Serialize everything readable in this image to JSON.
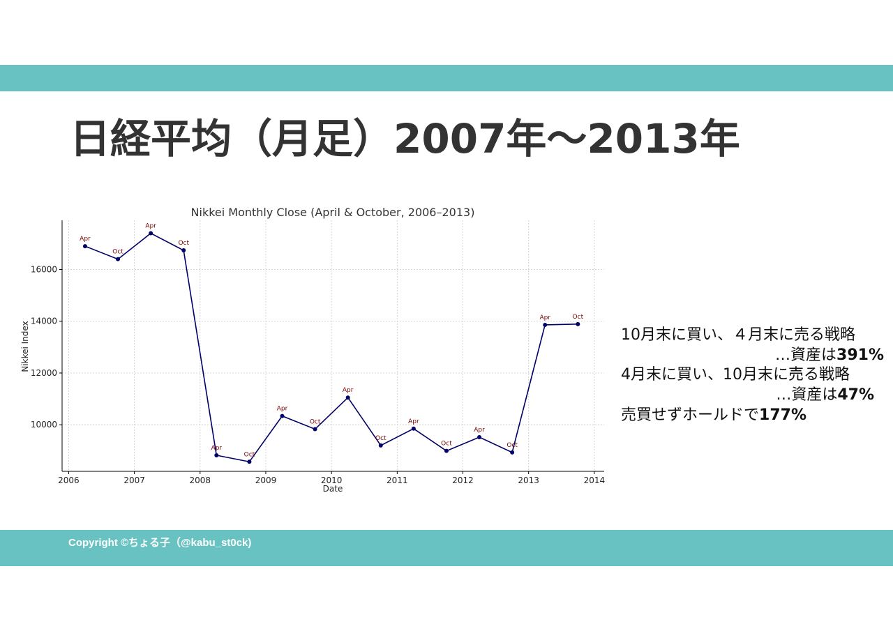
{
  "slide": {
    "title": "日経平均（月足）2007年〜2013年",
    "copyright": "Copyright ©ちょる子（@kabu_st0ck)"
  },
  "notes": {
    "line1": "10月末に買い、４月末に売る戦略",
    "line2_prefix": "…資産は",
    "line2_value": "391%",
    "line3": "4月末に買い、10月末に売る戦略",
    "line4_prefix": "…資産は",
    "line4_value": "47%",
    "line5_prefix": "売買せずホールドで",
    "line5_value": "177%"
  },
  "colors": {
    "band": "#68c2c2",
    "title": "#333333",
    "line": "#000066",
    "point_label": "#7a0000",
    "grid": "#cccccc"
  },
  "chart_data": {
    "type": "line",
    "title": "Nikkei Monthly Close (April & October, 2006–2013)",
    "xlabel": "Date",
    "ylabel": "Nikkei Index",
    "xlim": [
      2005.9,
      2014.15
    ],
    "ylim": [
      8200,
      17900
    ],
    "grid": true,
    "x_ticks": [
      2006,
      2007,
      2008,
      2009,
      2010,
      2011,
      2012,
      2013,
      2014
    ],
    "x_tick_labels": [
      "2006",
      "2007",
      "2008",
      "2009",
      "2010",
      "2011",
      "2012",
      "2013",
      "2014"
    ],
    "y_ticks": [
      10000,
      12000,
      14000,
      16000
    ],
    "y_tick_labels": [
      "10000",
      "12000",
      "14000",
      "16000"
    ],
    "points": [
      {
        "date": "2006-04",
        "x": 2006.25,
        "y": 16900,
        "label": "Apr"
      },
      {
        "date": "2006-10",
        "x": 2006.75,
        "y": 16400,
        "label": "Oct"
      },
      {
        "date": "2007-04",
        "x": 2007.25,
        "y": 17400,
        "label": "Apr"
      },
      {
        "date": "2007-10",
        "x": 2007.75,
        "y": 16740,
        "label": "Oct"
      },
      {
        "date": "2008-04",
        "x": 2008.25,
        "y": 8820,
        "label": "Apr"
      },
      {
        "date": "2008-10",
        "x": 2008.75,
        "y": 8570,
        "label": "Oct"
      },
      {
        "date": "2009-04",
        "x": 2009.25,
        "y": 10340,
        "label": "Apr"
      },
      {
        "date": "2009-10",
        "x": 2009.75,
        "y": 9830,
        "label": "Oct"
      },
      {
        "date": "2010-04",
        "x": 2010.25,
        "y": 11050,
        "label": "Apr"
      },
      {
        "date": "2010-10",
        "x": 2010.75,
        "y": 9200,
        "label": "Oct"
      },
      {
        "date": "2011-04",
        "x": 2011.25,
        "y": 9850,
        "label": "Apr"
      },
      {
        "date": "2011-10",
        "x": 2011.75,
        "y": 8990,
        "label": "Oct"
      },
      {
        "date": "2012-04",
        "x": 2012.25,
        "y": 9520,
        "label": "Apr"
      },
      {
        "date": "2012-10",
        "x": 2012.75,
        "y": 8930,
        "label": "Oct"
      },
      {
        "date": "2013-04",
        "x": 2013.25,
        "y": 13860,
        "label": "Apr"
      },
      {
        "date": "2013-10",
        "x": 2013.75,
        "y": 13890,
        "label": "Oct"
      }
    ]
  }
}
